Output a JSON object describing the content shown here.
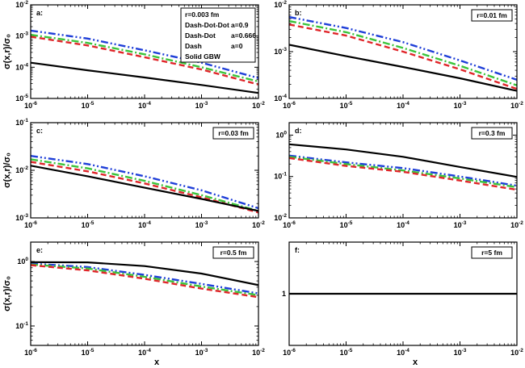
{
  "figure": {
    "ylabel": "σ(x,r)/σ₀",
    "xlabel": "x",
    "legend": {
      "header": "r=0.003 fm",
      "entries": [
        {
          "style": "Dash-Dot-Dot",
          "param": "a=0.9"
        },
        {
          "style": "Dash-Dot",
          "param": "a=0.666"
        },
        {
          "style": "Dash",
          "param": "a=0"
        },
        {
          "style": "Solid GBW",
          "param": ""
        }
      ]
    }
  },
  "series_colors": {
    "gbw": "#000000",
    "a_0.9": "#1f3fd8",
    "a_0.666": "#3bc43b",
    "a_0": "#e0262a"
  },
  "chart_data": [
    {
      "type": "line",
      "panel": "a:",
      "radius_label": "r=0.003 fm",
      "xscale": "log",
      "yscale": "log",
      "xlim": [
        1e-06,
        0.01
      ],
      "ylim": [
        1e-05,
        0.01
      ],
      "x": [
        1e-06,
        1e-05,
        0.0001,
        0.001,
        0.01
      ],
      "series": [
        {
          "key": "a_0.9",
          "style": "dash-dot-dot",
          "values": [
            0.0015,
            0.00083,
            0.00035,
            0.00014,
            4.5e-05
          ]
        },
        {
          "key": "a_0.666",
          "style": "dash-dot",
          "values": [
            0.0011,
            0.0006,
            0.00026,
            0.0001,
            3.5e-05
          ]
        },
        {
          "key": "a_0",
          "style": "dash",
          "values": [
            0.00095,
            0.0005,
            0.00021,
            8.5e-05,
            2.8e-05
          ]
        },
        {
          "key": "gbw",
          "style": "solid",
          "values": [
            0.00014,
            8e-05,
            4.7e-05,
            2.7e-05,
            1.5e-05
          ]
        }
      ],
      "xticks": [
        -6,
        -5,
        -4,
        -3,
        -2
      ],
      "yticks": [
        -5,
        -4,
        -3,
        -2
      ],
      "show_x_label": false,
      "show_y_label": true
    },
    {
      "type": "line",
      "panel": "b:",
      "radius_label": "r=0.01 fm",
      "xscale": "log",
      "yscale": "log",
      "xlim": [
        1e-06,
        0.01
      ],
      "ylim": [
        0.0001,
        0.01
      ],
      "x": [
        1e-06,
        1e-05,
        0.0001,
        0.001,
        0.01
      ],
      "series": [
        {
          "key": "a_0.9",
          "style": "dash-dot-dot",
          "values": [
            0.0055,
            0.0032,
            0.0016,
            0.00065,
            0.00025
          ]
        },
        {
          "key": "a_0.666",
          "style": "dash-dot",
          "values": [
            0.0045,
            0.0026,
            0.0012,
            0.0005,
            0.00019
          ]
        },
        {
          "key": "a_0",
          "style": "dash",
          "values": [
            0.0038,
            0.0022,
            0.001,
            0.00042,
            0.00016
          ]
        },
        {
          "key": "gbw",
          "style": "solid",
          "values": [
            0.0014,
            0.0008,
            0.00047,
            0.00027,
            0.000145
          ]
        }
      ],
      "xticks": [
        -6,
        -5,
        -4,
        -3,
        -2
      ],
      "yticks": [
        -4,
        -3,
        -2
      ],
      "show_x_label": false,
      "show_y_label": false
    },
    {
      "type": "line",
      "panel": "c:",
      "radius_label": "r=0.03 fm",
      "xscale": "log",
      "yscale": "log",
      "xlim": [
        1e-06,
        0.01
      ],
      "ylim": [
        0.001,
        0.1
      ],
      "x": [
        1e-06,
        1e-05,
        0.0001,
        0.001,
        0.01
      ],
      "series": [
        {
          "key": "a_0.9",
          "style": "dash-dot-dot",
          "values": [
            0.02,
            0.0135,
            0.0075,
            0.0038,
            0.0016
          ]
        },
        {
          "key": "a_0.666",
          "style": "dash-dot",
          "values": [
            0.017,
            0.011,
            0.006,
            0.003,
            0.0014
          ]
        },
        {
          "key": "a_0",
          "style": "dash",
          "values": [
            0.015,
            0.0095,
            0.0053,
            0.0027,
            0.0013
          ]
        },
        {
          "key": "gbw",
          "style": "solid",
          "values": [
            0.0125,
            0.0075,
            0.0043,
            0.0025,
            0.0014
          ]
        }
      ],
      "xticks": [
        -6,
        -5,
        -4,
        -3,
        -2
      ],
      "yticks": [
        -3,
        -2,
        -1
      ],
      "show_x_label": false,
      "show_y_label": true
    },
    {
      "type": "line",
      "panel": "d:",
      "radius_label": "r=0.3 fm",
      "xscale": "log",
      "yscale": "log",
      "xlim": [
        1e-06,
        0.01
      ],
      "ylim": [
        0.01,
        2
      ],
      "x": [
        1e-06,
        1e-05,
        0.0001,
        0.001,
        0.01
      ],
      "series": [
        {
          "key": "a_0.9",
          "style": "dash-dot-dot",
          "values": [
            0.32,
            0.22,
            0.16,
            0.1,
            0.06
          ]
        },
        {
          "key": "a_0.666",
          "style": "dash-dot",
          "values": [
            0.3,
            0.2,
            0.14,
            0.09,
            0.055
          ]
        },
        {
          "key": "a_0",
          "style": "dash",
          "values": [
            0.28,
            0.18,
            0.13,
            0.08,
            0.048
          ]
        },
        {
          "key": "gbw",
          "style": "solid",
          "values": [
            0.6,
            0.45,
            0.3,
            0.17,
            0.098
          ]
        }
      ],
      "xticks": [
        -6,
        -5,
        -4,
        -3,
        -2
      ],
      "yticks": [
        -2,
        -1,
        0
      ],
      "show_x_label": false,
      "show_y_label": false
    },
    {
      "type": "line",
      "panel": "e:",
      "radius_label": "r=0.5 fm",
      "xscale": "log",
      "yscale": "log",
      "xlim": [
        1e-06,
        0.01
      ],
      "ylim": [
        0.05,
        2
      ],
      "x": [
        1e-06,
        1e-05,
        0.0001,
        0.001,
        0.01
      ],
      "series": [
        {
          "key": "a_0.9",
          "style": "dash-dot-dot",
          "values": [
            0.93,
            0.82,
            0.62,
            0.45,
            0.32
          ]
        },
        {
          "key": "a_0.666",
          "style": "dash-dot",
          "values": [
            0.9,
            0.78,
            0.58,
            0.41,
            0.3
          ]
        },
        {
          "key": "a_0",
          "style": "dash",
          "values": [
            0.88,
            0.73,
            0.54,
            0.38,
            0.28
          ]
        },
        {
          "key": "gbw",
          "style": "solid",
          "values": [
            0.98,
            0.97,
            0.85,
            0.65,
            0.43
          ]
        }
      ],
      "xticks": [
        -6,
        -5,
        -4,
        -3,
        -2
      ],
      "yticks": [
        -1,
        0
      ],
      "show_x_label": true,
      "show_y_label": true
    },
    {
      "type": "line",
      "panel": "f:",
      "radius_label": "r=5 fm",
      "xscale": "log",
      "yscale": "linear",
      "xlim": [
        1e-06,
        0.01
      ],
      "ylim": [
        0,
        2
      ],
      "x": [
        1e-06,
        1e-05,
        0.0001,
        0.001,
        0.01
      ],
      "series": [
        {
          "key": "gbw",
          "style": "solid",
          "values": [
            1,
            1,
            1,
            1,
            1
          ]
        }
      ],
      "xticks": [
        -6,
        -5,
        -4,
        -3,
        -2
      ],
      "yticks_linear": [
        1
      ],
      "show_x_label": true,
      "show_y_label": false
    }
  ]
}
